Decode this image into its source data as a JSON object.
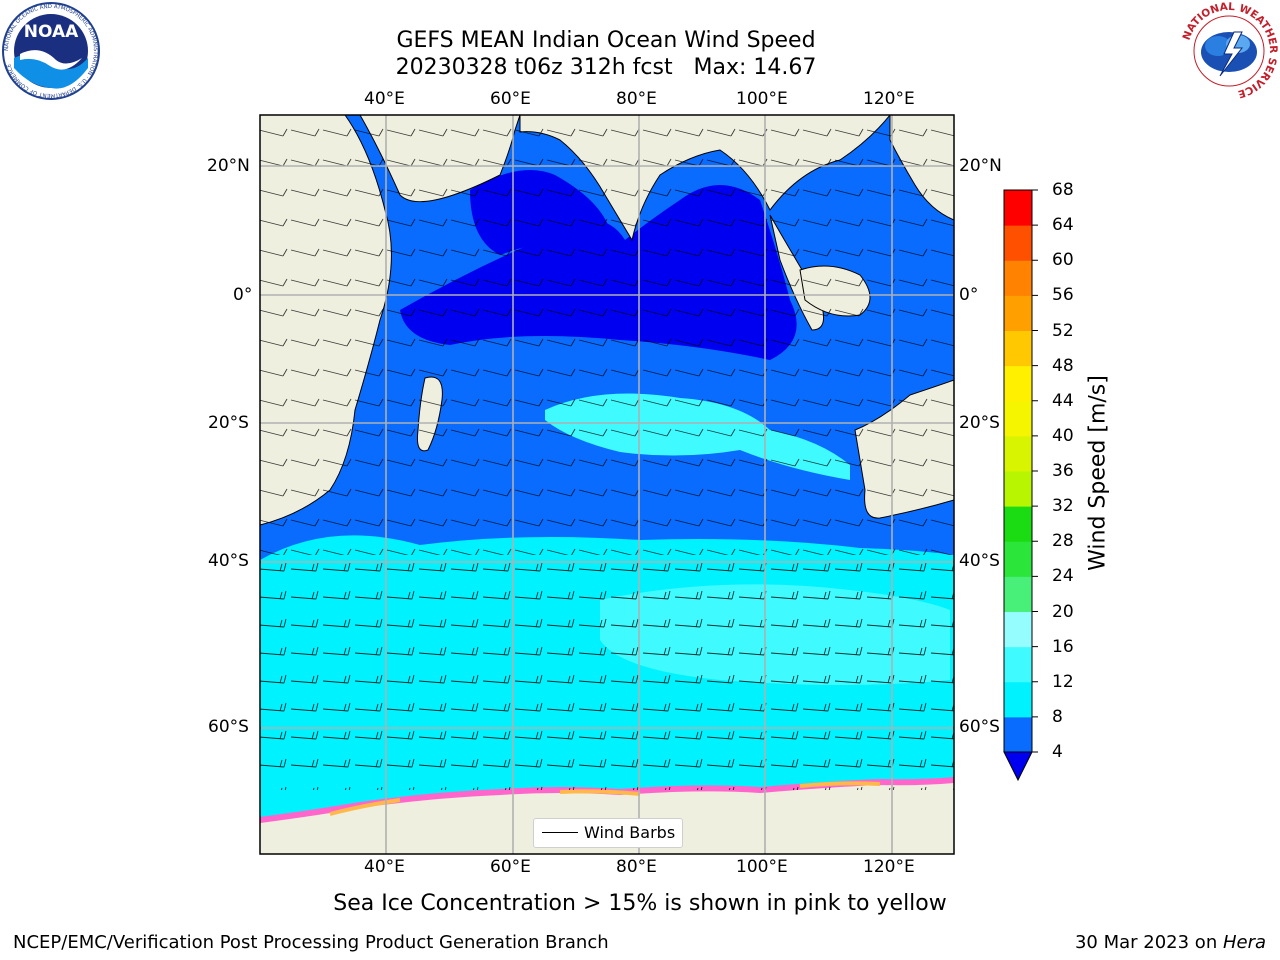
{
  "title": {
    "line1": "GEFS MEAN Indian Ocean Wind Speed",
    "line2": "20230328 t06z 312h fcst   Max: 14.67"
  },
  "logos": {
    "noaa": {
      "text": "NOAA",
      "ring": "NATIONAL OCEANIC AND ATMOSPHERIC ADMINISTRATION · U.S. DEPARTMENT OF COMMERCE"
    },
    "nws": {
      "ring": "NATIONAL WEATHER SERVICE"
    }
  },
  "map": {
    "lon_ticks": [
      "40°E",
      "60°E",
      "80°E",
      "100°E",
      "120°E"
    ],
    "lat_ticks": [
      "20°N",
      "0°",
      "20°S",
      "40°S",
      "60°S"
    ],
    "legend_label": "Wind Barbs",
    "colors": {
      "land": "#efefdf",
      "sea_ice": "#ff66cc",
      "speed_4_8": "#0a6cff",
      "speed_8_12": "#00f2ff",
      "speed_12_16": "#3ffbff",
      "speed_lt4": "#0000f0"
    }
  },
  "colorbar": {
    "label": "Wind Speed [m/s]",
    "ticks": [
      "68",
      "64",
      "60",
      "56",
      "52",
      "48",
      "44",
      "40",
      "36",
      "32",
      "28",
      "24",
      "20",
      "16",
      "12",
      "8",
      "4"
    ],
    "colors_low_to_high": [
      "#0a6cff",
      "#00f2ff",
      "#3ffbff",
      "#96fdff",
      "#48f07a",
      "#2ce53a",
      "#1bdc12",
      "#64e800",
      "#b7f500",
      "#d9f400",
      "#f5f500",
      "#fff000",
      "#ffc800",
      "#ffa000",
      "#ff8200",
      "#ff5000",
      "#ff2800",
      "#ff0000"
    ],
    "extend_color": "#0000f0"
  },
  "subtitle": "Sea Ice Concentration > 15% is shown in pink to yellow",
  "footer": {
    "left": "NCEP/EMC/Verification Post Processing Product Generation Branch",
    "right_date": "30 Mar 2023 on ",
    "right_machine": "Hera"
  }
}
